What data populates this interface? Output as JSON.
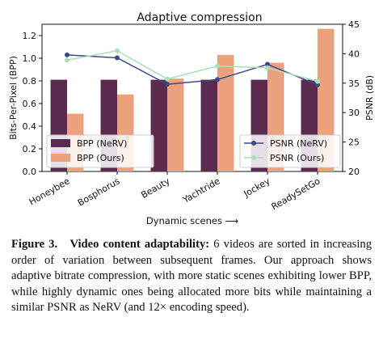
{
  "chart_data": {
    "type": "bar",
    "title": "Adaptive compression",
    "xlabel": "Dynamic scenes ⟶",
    "ylabel": "Bits-Per-Pixel (BPP)",
    "y2label": "PSNR (dB)",
    "categories": [
      "Honeybee",
      "Bosphorus",
      "Beauty",
      "Yachtride",
      "Jockey",
      "ReadySetGo"
    ],
    "ylim": [
      0,
      1.3
    ],
    "yticks": [
      "0.0",
      "0.2",
      "0.4",
      "0.6",
      "0.8",
      "1.0",
      "1.2"
    ],
    "y2lim": [
      20,
      45
    ],
    "y2ticks": [
      "20",
      "25",
      "30",
      "35",
      "40",
      "45"
    ],
    "series": [
      {
        "name": "BPP (NeRV)",
        "kind": "bar",
        "axis": "left",
        "color": "#5a2a4f",
        "values": [
          0.81,
          0.81,
          0.81,
          0.81,
          0.81,
          0.81
        ]
      },
      {
        "name": "BPP (Ours)",
        "kind": "bar",
        "axis": "left",
        "color": "#eba27c",
        "values": [
          0.51,
          0.68,
          0.82,
          1.03,
          0.96,
          1.26
        ]
      },
      {
        "name": "PSNR (NeRV)",
        "kind": "line",
        "axis": "right",
        "color": "#3b4a86",
        "values": [
          39.8,
          39.3,
          34.8,
          35.6,
          38.2,
          34.7
        ]
      },
      {
        "name": "PSNR (Ours)",
        "kind": "line",
        "axis": "right",
        "color": "#a8e0b8",
        "values": [
          38.9,
          40.5,
          35.7,
          37.9,
          37.6,
          35.3
        ]
      }
    ],
    "legend_left": "lower-left",
    "legend_right": "lower-right",
    "grid": false
  },
  "caption": {
    "label": "Figure 3.",
    "bold": "Video content adaptability:",
    "text": " 6 videos are sorted in increasing order of variation between subsequent frames. Our approach shows adaptive bitrate compression, with more static scenes exhibiting lower BPP, while highly dynamic ones being allocated more bits while maintaining a similar PSNR as NeRV (and 12× encoding speed)."
  }
}
